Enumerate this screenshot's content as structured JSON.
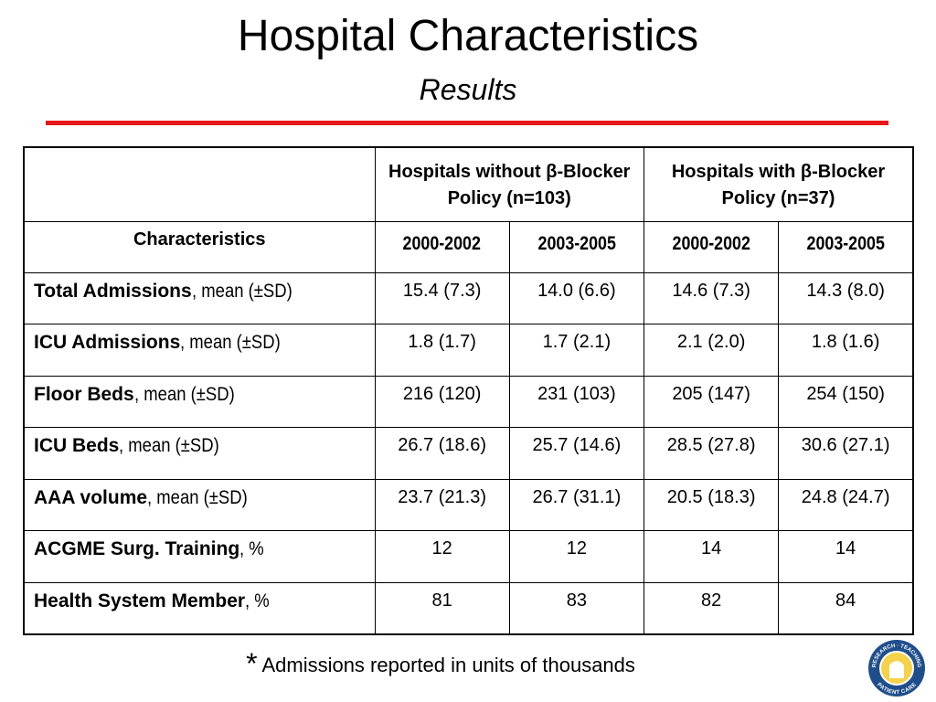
{
  "header": {
    "title": "Hospital Characteristics",
    "subtitle": "Results"
  },
  "table": {
    "group_headers": [
      "Hospitals without β-Blocker Policy (n=103)",
      "Hospitals with β-Blocker Policy (n=37)"
    ],
    "row_header": "Characteristics",
    "periods": [
      "2000-2002",
      "2003-2005",
      "2000-2002",
      "2003-2005"
    ],
    "rows": [
      {
        "label": "Total Admissions",
        "unit": ", mean (±SD)",
        "cells": [
          "15.4 (7.3)",
          "14.0 (6.6)",
          "14.6 (7.3)",
          "14.3 (8.0)"
        ]
      },
      {
        "label": "ICU Admissions",
        "unit": ", mean (±SD)",
        "cells": [
          "1.8 (1.7)",
          "1.7 (2.1)",
          "2.1 (2.0)",
          "1.8 (1.6)"
        ]
      },
      {
        "label": "Floor Beds",
        "unit": ", mean (±SD)",
        "cells": [
          "216 (120)",
          "231 (103)",
          "205 (147)",
          "254 (150)"
        ]
      },
      {
        "label": "ICU Beds",
        "unit": ", mean (±SD)",
        "cells": [
          "26.7 (18.6)",
          "25.7 (14.6)",
          "28.5 (27.8)",
          "30.6 (27.1)"
        ]
      },
      {
        "label": "AAA volume",
        "unit": ", mean (±SD)",
        "cells": [
          "23.7 (21.3)",
          "26.7 (31.1)",
          "20.5 (18.3)",
          "24.8 (24.7)"
        ]
      },
      {
        "label": "ACGME Surg. Training",
        "unit": ", %",
        "cells": [
          "12",
          "12",
          "14",
          "14"
        ]
      },
      {
        "label": "Health System Member",
        "unit": ", %",
        "cells": [
          "81",
          "83",
          "82",
          "84"
        ]
      }
    ]
  },
  "footnote": {
    "marker": "*",
    "text": "Admissions reported in units of thousands"
  },
  "logo": {
    "top": "RESEARCH · TEACHING",
    "bottom": "PATIENT CARE"
  }
}
